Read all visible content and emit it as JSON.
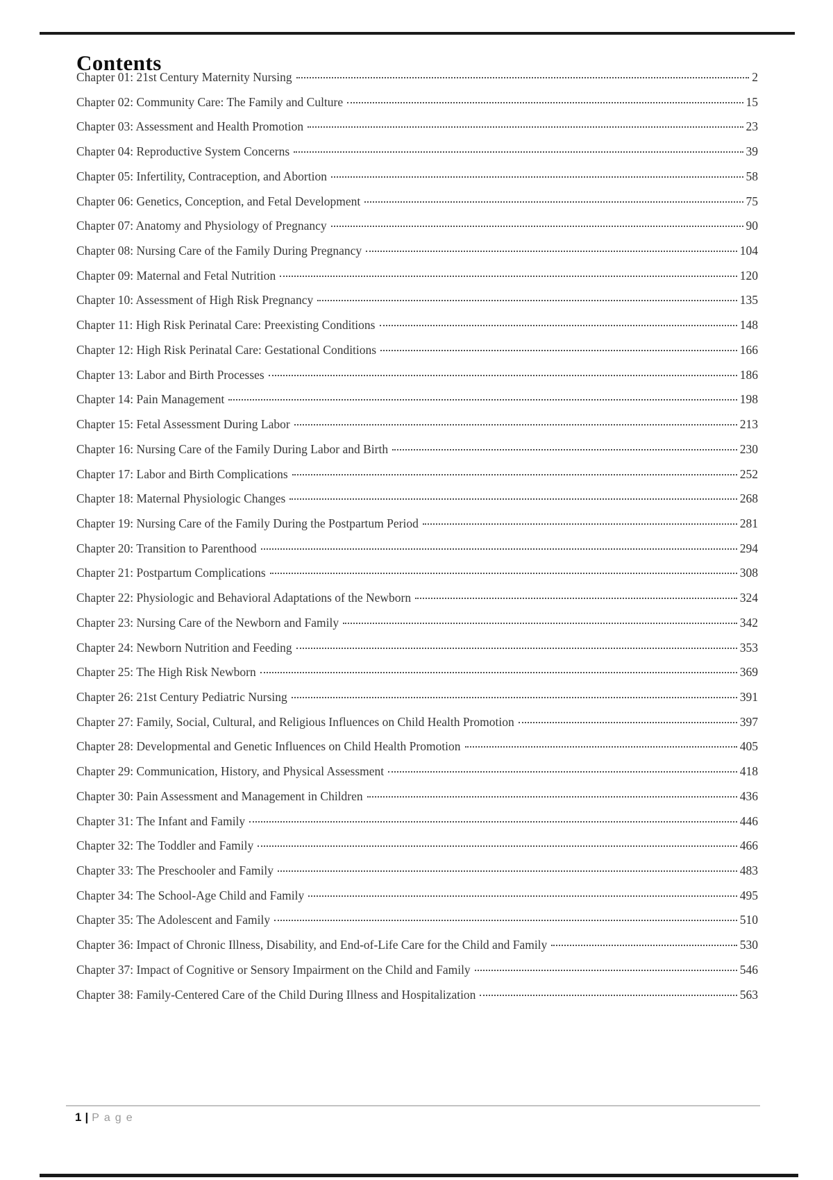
{
  "page": {
    "title": "Contents",
    "footer": {
      "page_number": "1",
      "separator": "|",
      "label": "Page"
    }
  },
  "colors": {
    "rule_dark": "#1a1a1a",
    "rule_light": "#c2c2c2",
    "text": "#373737"
  },
  "toc": {
    "entries": [
      {
        "label": "Chapter 01: 21st Century Maternity Nursing",
        "page": "2"
      },
      {
        "label": "Chapter 02: Community Care: The Family and Culture",
        "page": "15"
      },
      {
        "label": "Chapter 03: Assessment and Health Promotion",
        "page": "23"
      },
      {
        "label": "Chapter 04: Reproductive System Concerns",
        "page": "39"
      },
      {
        "label": "Chapter 05: Infertility, Contraception, and Abortion",
        "page": "58"
      },
      {
        "label": "Chapter 06: Genetics, Conception, and Fetal Development",
        "page": "75"
      },
      {
        "label": "Chapter 07: Anatomy and Physiology of Pregnancy",
        "page": "90"
      },
      {
        "label": "Chapter 08: Nursing Care of the Family During Pregnancy",
        "page": "104"
      },
      {
        "label": "Chapter 09: Maternal and Fetal Nutrition",
        "page": "120"
      },
      {
        "label": "Chapter 10: Assessment of High Risk Pregnancy",
        "page": "135"
      },
      {
        "label": "Chapter 11: High Risk Perinatal Care: Preexisting Conditions",
        "page": "148"
      },
      {
        "label": "Chapter 12: High Risk Perinatal Care: Gestational Conditions",
        "page": "166"
      },
      {
        "label": "Chapter 13: Labor and Birth Processes",
        "page": "186"
      },
      {
        "label": "Chapter 14: Pain Management",
        "page": "198"
      },
      {
        "label": "Chapter 15: Fetal Assessment During Labor",
        "page": "213"
      },
      {
        "label": "Chapter 16: Nursing Care of the Family During Labor and Birth",
        "page": "230"
      },
      {
        "label": "Chapter 17: Labor and Birth Complications",
        "page": "252"
      },
      {
        "label": "Chapter 18: Maternal Physiologic Changes",
        "page": "268"
      },
      {
        "label": "Chapter 19: Nursing Care of the Family During the Postpartum Period",
        "page": "281"
      },
      {
        "label": "Chapter 20: Transition to Parenthood",
        "page": "294"
      },
      {
        "label": "Chapter 21: Postpartum Complications",
        "page": "308"
      },
      {
        "label": "Chapter 22: Physiologic and Behavioral Adaptations of the Newborn",
        "page": "324"
      },
      {
        "label": "Chapter 23: Nursing Care of the Newborn and Family",
        "page": "342"
      },
      {
        "label": "Chapter 24: Newborn Nutrition and Feeding",
        "page": "353"
      },
      {
        "label": "Chapter 25: The High Risk Newborn",
        "page": "369"
      },
      {
        "label": "Chapter 26: 21st Century Pediatric Nursing",
        "page": "391"
      },
      {
        "label": "Chapter 27: Family, Social, Cultural, and Religious Influences on Child Health Promotion",
        "page": "397"
      },
      {
        "label": "Chapter 28: Developmental and Genetic Influences on Child Health Promotion",
        "page": "405"
      },
      {
        "label": "Chapter 29: Communication, History, and Physical Assessment",
        "page": "418"
      },
      {
        "label": "Chapter 30: Pain Assessment and Management in Children",
        "page": "436"
      },
      {
        "label": "Chapter 31: The Infant and Family",
        "page": "446"
      },
      {
        "label": "Chapter 32: The Toddler and Family",
        "page": "466"
      },
      {
        "label": "Chapter 33: The Preschooler and Family",
        "page": "483"
      },
      {
        "label": "Chapter 34: The School-Age Child and Family",
        "page": "495"
      },
      {
        "label": "Chapter 35: The Adolescent and Family",
        "page": "510"
      },
      {
        "label": "Chapter 36: Impact of Chronic Illness, Disability, and End-of-Life Care for the Child and Family",
        "page": "530"
      },
      {
        "label": "Chapter 37: Impact of Cognitive or Sensory Impairment on the Child and Family",
        "page": "546"
      },
      {
        "label": "Chapter 38: Family-Centered Care of the Child During Illness and Hospitalization",
        "page": "563"
      }
    ]
  }
}
